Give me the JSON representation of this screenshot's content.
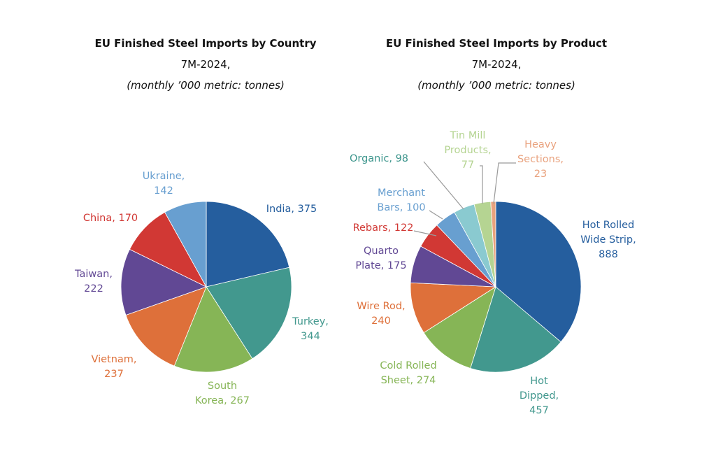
{
  "chart_data": [
    {
      "type": "pie",
      "title": "EU Finished Steel Imports by Country",
      "subtitle": "7M-2024,",
      "units": "(monthly ’000 metric: tonnes)",
      "categories": [
        "India",
        "Turkey",
        "South Korea",
        "Vietnam",
        "Taiwan",
        "China",
        "Ukraine"
      ],
      "values": [
        375,
        344,
        267,
        237,
        222,
        170,
        142
      ],
      "colors": [
        "#255E9E",
        "#42988E",
        "#86B556",
        "#DE703A",
        "#614894",
        "#D13834",
        "#689FD0"
      ],
      "labels": [
        [
          "India, 375"
        ],
        [
          "Turkey,",
          "344"
        ],
        [
          "South",
          "Korea, 267"
        ],
        [
          "Vietnam,",
          "237"
        ],
        [
          "Taiwan,",
          "222"
        ],
        [
          "China, 170"
        ],
        [
          "Ukraine,",
          "142"
        ]
      ],
      "start_angle_deg": 0,
      "direction": "clockwise"
    },
    {
      "type": "pie",
      "title": "EU Finished Steel Imports by Product",
      "subtitle": "7M-2024,",
      "units": "(monthly ’000 metric: tonnes)",
      "categories": [
        "Hot Rolled Wide Strip",
        "Hot Dipped",
        "Cold Rolled Sheet",
        "Wire Rod",
        "Quarto Plate",
        "Rebars",
        "Merchant Bars",
        "Organic",
        "Tin Mill Products",
        "Heavy Sections"
      ],
      "values": [
        888,
        457,
        274,
        240,
        175,
        122,
        100,
        98,
        77,
        23
      ],
      "colors": [
        "#255E9E",
        "#42988E",
        "#86B556",
        "#DE703A",
        "#614894",
        "#D13834",
        "#689FD0",
        "#8ACAD0",
        "#B5D492",
        "#E9A27E"
      ],
      "label_colors": [
        "#255E9E",
        "#42988E",
        "#86B556",
        "#DE703A",
        "#614894",
        "#D13834",
        "#689FD0",
        "#3C958C",
        "#B5D492",
        "#E9A27E"
      ],
      "labels": [
        [
          "Hot Rolled",
          "Wide Strip,",
          "888"
        ],
        [
          "Hot",
          "Dipped,",
          "457"
        ],
        [
          "Cold Rolled",
          "Sheet, 274"
        ],
        [
          "Wire Rod,",
          "240"
        ],
        [
          "Quarto",
          "Plate, 175"
        ],
        [
          "Rebars, 122"
        ],
        [
          "Merchant",
          "Bars, 100"
        ],
        [
          "Organic,  98"
        ],
        [
          "Tin Mill",
          "Products,",
          "77"
        ],
        [
          "Heavy",
          "Sections,",
          "23"
        ]
      ],
      "start_angle_deg": 0,
      "direction": "clockwise"
    }
  ]
}
